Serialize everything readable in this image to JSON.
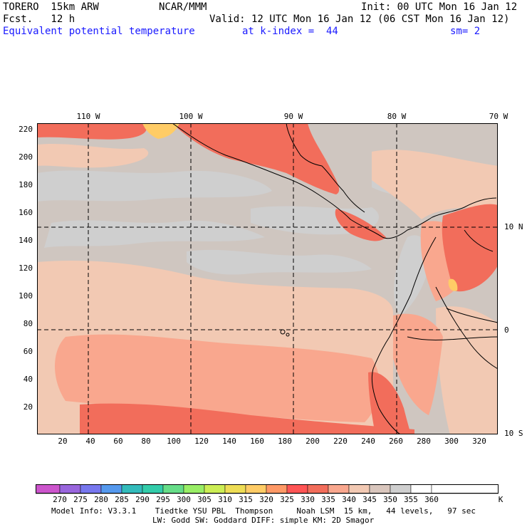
{
  "header": {
    "line1_left": "TORERO  15km ARW",
    "line1_center": "NCAR/MMM",
    "line1_right": "Init: 00 UTC Mon 16 Jan 12",
    "line2_left": "Fcst.   12 h",
    "line2_right": "Valid: 12 UTC Mon 16 Jan 12 (06 CST Mon 16 Jan 12)",
    "line3_field": "Equivalent potential temperature",
    "line3_level": "at k-index =  44",
    "line3_smooth": "sm= 2"
  },
  "map": {
    "lon_labels": [
      "110 W",
      "100 W",
      "90 W",
      "80 W",
      "70 W"
    ],
    "lat_labels": [
      "10 N",
      "0",
      "10 S"
    ],
    "y_grid_labels": [
      "220",
      "200",
      "180",
      "160",
      "140",
      "120",
      "100",
      "80",
      "60",
      "40",
      "20"
    ],
    "x_grid_labels": [
      "20",
      "40",
      "60",
      "80",
      "100",
      "120",
      "140",
      "160",
      "180",
      "200",
      "220",
      "240",
      "260",
      "280",
      "300",
      "320"
    ],
    "ocean_color": "#c7c7c7",
    "land_outline_color": "#000000"
  },
  "colorbar": {
    "labels": [
      "270",
      "275",
      "280",
      "285",
      "290",
      "295",
      "300",
      "305",
      "310",
      "315",
      "320",
      "325",
      "330",
      "335",
      "340",
      "345",
      "350",
      "355",
      "360"
    ],
    "unit": "K",
    "colors": [
      "#cc55cc",
      "#9966dd",
      "#7777ee",
      "#5599ee",
      "#33bbbb",
      "#33ccaa",
      "#66dd88",
      "#99ee66",
      "#ccee55",
      "#eedd55",
      "#ffcc66",
      "#ff9966",
      "#ff5555",
      "#f26d5b",
      "#f9a78e",
      "#f2c9b3",
      "#d9c6bd",
      "#cfcfcf",
      "#ffffff"
    ]
  },
  "footer": {
    "line1": "Model Info: V3.3.1    Tiedtke YSU PBL  Thompson     Noah LSM  15 km,   44 levels,   97 sec",
    "line2": "LW: Godd SW: Goddard DIFF: simple KM: 2D Smagor"
  }
}
